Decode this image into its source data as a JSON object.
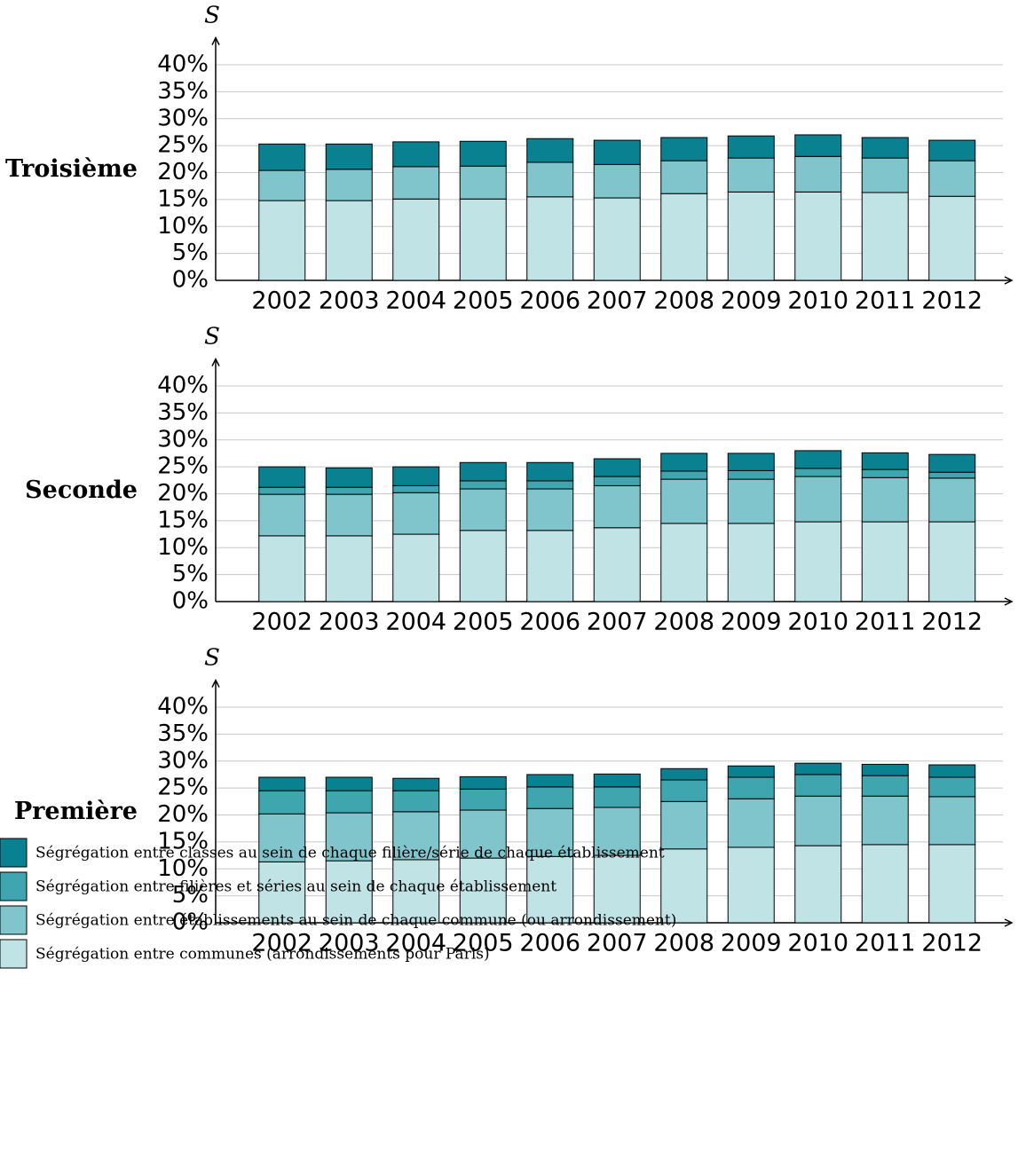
{
  "chart_data": [
    {
      "type": "bar",
      "stacked": true,
      "title": "Troisième",
      "y_label": "S",
      "categories": [
        "2002",
        "2003",
        "2004",
        "2005",
        "2006",
        "2007",
        "2008",
        "2009",
        "2010",
        "2011",
        "2012"
      ],
      "series": [
        {
          "color": "#c0e3e6",
          "values": [
            14.8,
            14.8,
            15.1,
            15.1,
            15.5,
            15.3,
            16.1,
            16.4,
            16.4,
            16.3,
            15.6
          ]
        },
        {
          "color": "#80c4cc",
          "values": [
            5.6,
            5.8,
            6.0,
            6.1,
            6.4,
            6.2,
            6.1,
            6.3,
            6.6,
            6.4,
            6.6
          ]
        },
        {
          "color": "#0a8190",
          "values": [
            4.9,
            4.7,
            4.6,
            4.6,
            4.4,
            4.5,
            4.3,
            4.1,
            4.0,
            3.8,
            3.8
          ]
        }
      ],
      "ylim": [
        0,
        45
      ],
      "yticks": [
        {
          "value": 0,
          "label": "0%"
        },
        {
          "value": 5,
          "label": "5%"
        },
        {
          "value": 10,
          "label": "10%"
        },
        {
          "value": 15,
          "label": "15%"
        },
        {
          "value": 20,
          "label": "20%"
        },
        {
          "value": 25,
          "label": "25%"
        },
        {
          "value": 30,
          "label": "30%"
        },
        {
          "value": 35,
          "label": "35%"
        },
        {
          "value": 40,
          "label": "40%"
        }
      ],
      "grid": true
    },
    {
      "type": "bar",
      "stacked": true,
      "title": "Seconde",
      "y_label": "S",
      "categories": [
        "2002",
        "2003",
        "2004",
        "2005",
        "2006",
        "2007",
        "2008",
        "2009",
        "2010",
        "2011",
        "2012"
      ],
      "series": [
        {
          "name": "Ségrégation entre communes (arrondissements pour Paris)",
          "color": "#c0e3e6",
          "values": [
            12.2,
            12.2,
            12.5,
            13.2,
            13.2,
            13.7,
            14.5,
            14.5,
            14.8,
            14.8,
            14.8
          ]
        },
        {
          "name": "Ségrégation entre établissements au sein de chaque commune (ou arrondissement)",
          "color": "#80c4cc",
          "values": [
            7.7,
            7.7,
            7.7,
            7.7,
            7.7,
            7.8,
            8.2,
            8.2,
            8.4,
            8.2,
            8.1
          ]
        },
        {
          "name": "Ségrégation entre filières et séries au sein de chaque établissement",
          "color": "#3fa6b0",
          "values": [
            1.3,
            1.3,
            1.3,
            1.5,
            1.5,
            1.7,
            1.5,
            1.6,
            1.5,
            1.5,
            1.1
          ]
        },
        {
          "name": "Ségrégation entre classes au sein de chaque filière/série de chaque établissement",
          "color": "#0a8190",
          "values": [
            3.8,
            3.6,
            3.5,
            3.4,
            3.4,
            3.3,
            3.3,
            3.2,
            3.3,
            3.1,
            3.3
          ]
        }
      ],
      "ylim": [
        0,
        45
      ],
      "yticks": [
        {
          "value": 0,
          "label": "0%"
        },
        {
          "value": 5,
          "label": "5%"
        },
        {
          "value": 10,
          "label": "10%"
        },
        {
          "value": 15,
          "label": "15%"
        },
        {
          "value": 20,
          "label": "20%"
        },
        {
          "value": 25,
          "label": "25%"
        },
        {
          "value": 30,
          "label": "30%"
        },
        {
          "value": 35,
          "label": "35%"
        },
        {
          "value": 40,
          "label": "40%"
        }
      ],
      "grid": true
    },
    {
      "type": "bar",
      "stacked": true,
      "title": "Première",
      "y_label": "S",
      "categories": [
        "2002",
        "2003",
        "2004",
        "2005",
        "2006",
        "2007",
        "2008",
        "2009",
        "2010",
        "2011",
        "2012"
      ],
      "series": [
        {
          "color": "#c0e3e6",
          "values": [
            11.3,
            11.5,
            11.7,
            12.0,
            12.3,
            12.5,
            13.7,
            14.0,
            14.3,
            14.5,
            14.5
          ]
        },
        {
          "color": "#80c4cc",
          "values": [
            8.9,
            8.9,
            8.9,
            8.9,
            8.9,
            8.9,
            8.8,
            9.0,
            9.2,
            9.0,
            8.9
          ]
        },
        {
          "color": "#3fa6b0",
          "values": [
            4.3,
            4.1,
            3.9,
            3.9,
            4.0,
            3.8,
            4.0,
            4.0,
            4.0,
            3.8,
            3.6
          ]
        },
        {
          "color": "#0a8190",
          "values": [
            2.5,
            2.5,
            2.3,
            2.3,
            2.3,
            2.4,
            2.1,
            2.1,
            2.1,
            2.1,
            2.3
          ]
        }
      ],
      "ylim": [
        0,
        45
      ],
      "yticks": [
        {
          "value": 0,
          "label": "0%"
        },
        {
          "value": 5,
          "label": "5%"
        },
        {
          "value": 10,
          "label": "10%"
        },
        {
          "value": 15,
          "label": "15%"
        },
        {
          "value": 20,
          "label": "20%"
        },
        {
          "value": 25,
          "label": "25%"
        },
        {
          "value": 30,
          "label": "30%"
        },
        {
          "value": 35,
          "label": "35%"
        },
        {
          "value": 40,
          "label": "40%"
        }
      ],
      "grid": true
    }
  ]
}
